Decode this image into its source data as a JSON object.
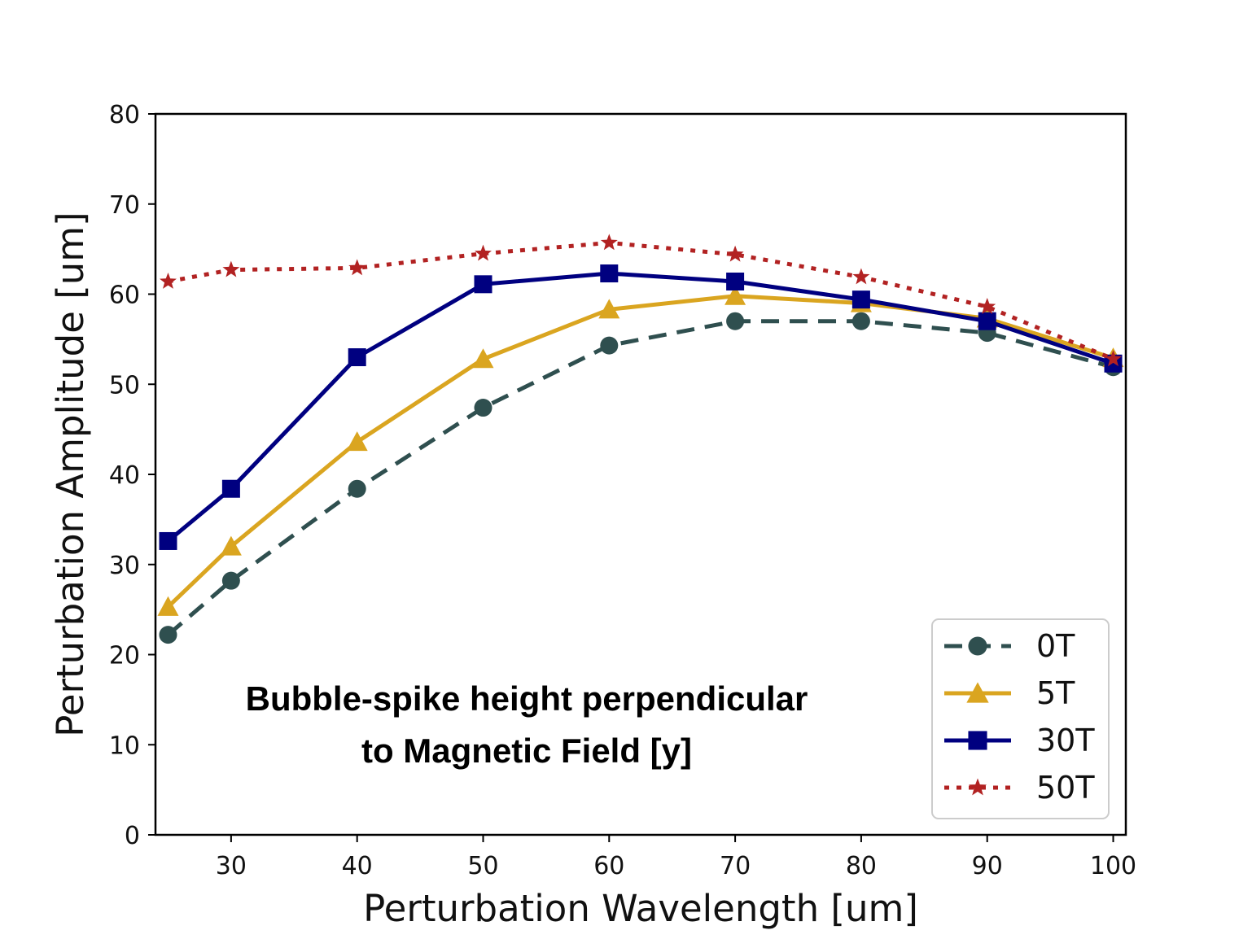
{
  "chart_data": {
    "type": "line",
    "title": "",
    "xlabel": "Perturbation Wavelength [um]",
    "ylabel": "Perturbation Amplitude [um]",
    "xlim": [
      24,
      101
    ],
    "ylim": [
      0,
      80
    ],
    "xticks": [
      30,
      40,
      50,
      60,
      70,
      80,
      90,
      100
    ],
    "yticks": [
      0,
      10,
      20,
      30,
      40,
      50,
      60,
      70,
      80
    ],
    "grid": false,
    "legend_position": "bottom-right",
    "x": [
      25,
      30,
      40,
      50,
      60,
      70,
      80,
      90,
      100
    ],
    "series": [
      {
        "name": "0T",
        "values": [
          22.2,
          28.2,
          38.4,
          47.4,
          54.3,
          57.0,
          57.0,
          55.7,
          51.9
        ],
        "color": "#2f4f4f",
        "marker": "circle",
        "line_style": "dashed"
      },
      {
        "name": "5T",
        "values": [
          25.3,
          32.0,
          43.6,
          52.8,
          58.3,
          59.8,
          59.0,
          57.3,
          52.9
        ],
        "color": "#daa520",
        "marker": "triangle",
        "line_style": "solid"
      },
      {
        "name": "30T",
        "values": [
          32.6,
          38.4,
          53.0,
          61.1,
          62.3,
          61.4,
          59.4,
          57.0,
          52.3
        ],
        "color": "#000080",
        "marker": "square",
        "line_style": "solid"
      },
      {
        "name": "50T",
        "values": [
          61.4,
          62.7,
          62.9,
          64.5,
          65.7,
          64.4,
          61.9,
          58.6,
          52.8
        ],
        "color": "#b22222",
        "marker": "star",
        "line_style": "dotted"
      }
    ],
    "annotation": [
      "Bubble-spike height perpendicular",
      "to Magnetic Field [y]"
    ]
  }
}
